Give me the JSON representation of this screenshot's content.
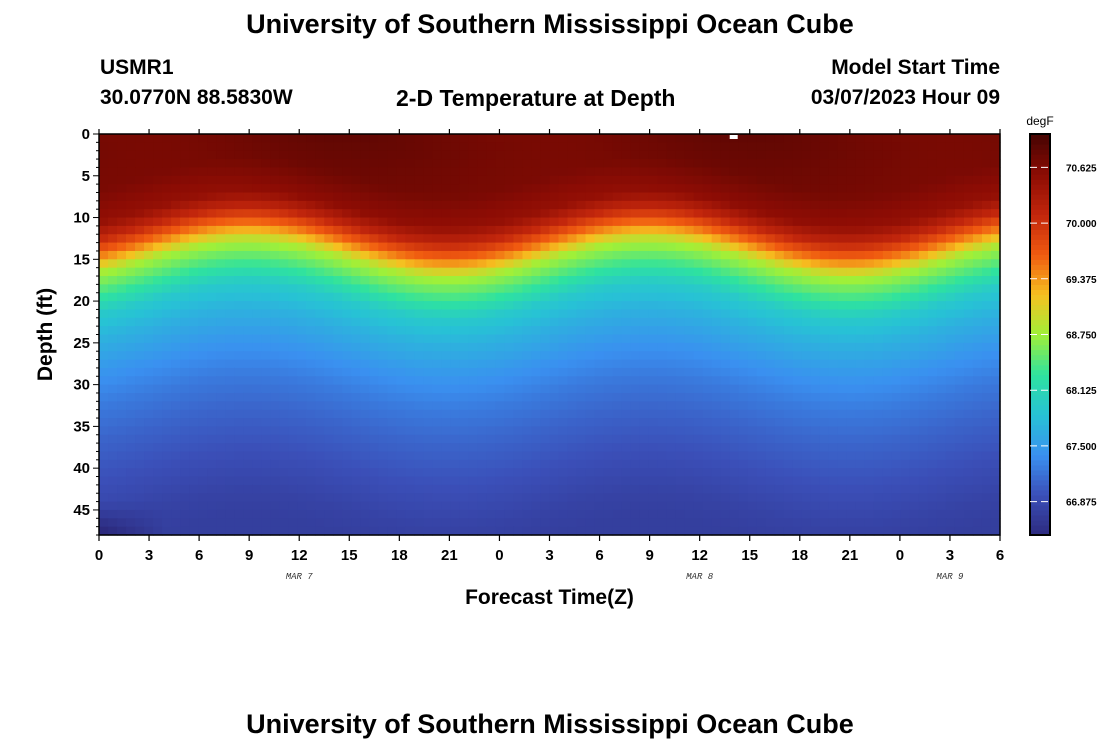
{
  "page": {
    "title": "University of Southern Mississippi Ocean Cube",
    "footer_title": "University of Southern Mississippi Ocean Cube",
    "station_id": "USMR1",
    "coords": "30.0770N  88.5830W",
    "subtitle": "2-D Temperature at Depth",
    "model_label": "Model Start Time",
    "model_time": "03/07/2023 Hour 09"
  },
  "chart_data": {
    "type": "heatmap",
    "title": "2-D Temperature at Depth",
    "xlabel": "Forecast Time(Z)",
    "ylabel": "Depth (ft)",
    "x_ticks": [
      "0",
      "3",
      "6",
      "9",
      "12",
      "15",
      "18",
      "21",
      "0",
      "3",
      "6",
      "9",
      "12",
      "15",
      "18",
      "21",
      "0",
      "3",
      "6"
    ],
    "x_range_hours": [
      0,
      54
    ],
    "date_labels": [
      {
        "label": "MAR 7",
        "hour": 12
      },
      {
        "label": "MAR 8",
        "hour": 36
      },
      {
        "label": "MAR 9",
        "hour": 51
      }
    ],
    "y_ticks": [
      0,
      5,
      10,
      15,
      20,
      25,
      30,
      35,
      40,
      45
    ],
    "y_range_ft": [
      0,
      48
    ],
    "colorbar": {
      "unit": "degF",
      "labels": [
        "70.625",
        "70.000",
        "69.375",
        "68.750",
        "68.125",
        "67.500",
        "66.875"
      ],
      "label_values": [
        70.625,
        70.0,
        69.375,
        68.75,
        68.125,
        67.5,
        66.875
      ],
      "range": [
        66.5,
        71.0
      ],
      "stops": [
        "#2c2a7e",
        "#3b4fb8",
        "#3a90f0",
        "#27c2d5",
        "#2ee2a0",
        "#a0f038",
        "#f6c020",
        "#f05a10",
        "#c2260c",
        "#8c0c04",
        "#450402"
      ]
    },
    "profile_depth_ft": [
      0,
      5,
      9,
      11,
      13,
      15,
      18,
      20,
      23,
      27,
      31,
      35,
      40,
      45,
      48
    ],
    "profile_temp_f": [
      70.75,
      70.7,
      70.5,
      70.1,
      69.5,
      68.8,
      68.3,
      67.95,
      67.7,
      67.45,
      67.25,
      67.1,
      66.95,
      66.8,
      66.75
    ]
  }
}
